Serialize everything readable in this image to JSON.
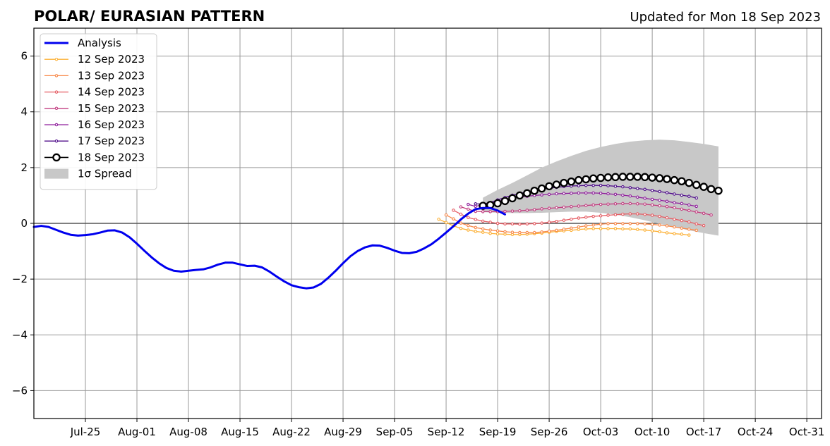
{
  "header": {
    "title": "POLAR/ EURASIAN  PATTERN",
    "updated": "Updated for Mon 18 Sep 2023"
  },
  "chart_data": {
    "type": "line",
    "title": "POLAR/ EURASIAN  PATTERN",
    "xlabel": "",
    "ylabel": "",
    "x_start_date": "2023-07-18",
    "xlim": [
      0,
      107
    ],
    "ylim": [
      -7,
      7
    ],
    "yticks": [
      -6,
      -4,
      -2,
      0,
      2,
      4,
      6
    ],
    "ytick_labels": [
      "−6",
      "−4",
      "−2",
      "0",
      "2",
      "4",
      "6"
    ],
    "xticks": [
      7,
      14,
      21,
      28,
      35,
      42,
      49,
      56,
      63,
      70,
      77,
      84,
      91,
      98,
      105
    ],
    "xtick_labels": [
      "Jul-25",
      "Aug-01",
      "Aug-08",
      "Aug-15",
      "Aug-22",
      "Aug-29",
      "Sep-05",
      "Sep-12",
      "Sep-19",
      "Sep-26",
      "Oct-03",
      "Oct-10",
      "Oct-17",
      "Oct-24",
      "Oct-31"
    ],
    "grid": true,
    "legend_position": "upper-left",
    "legend_labels": {
      "analysis": "Analysis",
      "spread": "1σ Spread"
    },
    "colors": {
      "analysis": "#0000ee",
      "spread": "#c8c8c8",
      "zero_line": "#555555",
      "grid": "#9a9a9a"
    },
    "analysis": {
      "name": "Analysis",
      "color": "#0000ee",
      "x_start": 0,
      "values": [
        -0.13,
        -0.09,
        -0.13,
        -0.23,
        -0.33,
        -0.41,
        -0.44,
        -0.42,
        -0.39,
        -0.33,
        -0.26,
        -0.25,
        -0.33,
        -0.5,
        -0.73,
        -0.98,
        -1.22,
        -1.43,
        -1.6,
        -1.7,
        -1.73,
        -1.7,
        -1.67,
        -1.65,
        -1.58,
        -1.48,
        -1.41,
        -1.41,
        -1.47,
        -1.53,
        -1.52,
        -1.58,
        -1.73,
        -1.91,
        -2.08,
        -2.22,
        -2.29,
        -2.33,
        -2.3,
        -2.17,
        -1.95,
        -1.7,
        -1.43,
        -1.18,
        -0.99,
        -0.86,
        -0.79,
        -0.8,
        -0.88,
        -0.98,
        -1.06,
        -1.07,
        -1.02,
        -0.9,
        -0.75,
        -0.55,
        -0.33,
        -0.1,
        0.14,
        0.35,
        0.51,
        0.55,
        0.55,
        0.46,
        0.32
      ]
    },
    "spread": {
      "x_start": 61,
      "upper": [
        0.92,
        1.2,
        1.45,
        1.72,
        2.0,
        2.22,
        2.42,
        2.6,
        2.74,
        2.85,
        2.93,
        2.98,
        3.0,
        2.98,
        2.92,
        2.85,
        2.76
      ],
      "lower": [
        0.4,
        0.38,
        0.37,
        0.37,
        0.38,
        0.4,
        0.42,
        0.42,
        0.38,
        0.31,
        0.22,
        0.11,
        -0.02,
        -0.13,
        -0.25,
        -0.35,
        -0.44
      ]
    },
    "series": [
      {
        "name": "12 Sep 2023",
        "color": "#fcb035",
        "x_start": 55,
        "values": [
          0.15,
          0.03,
          -0.09,
          -0.18,
          -0.24,
          -0.29,
          -0.32,
          -0.36,
          -0.38,
          -0.39,
          -0.4,
          -0.4,
          -0.39,
          -0.37,
          -0.35,
          -0.32,
          -0.29,
          -0.27,
          -0.25,
          -0.22,
          -0.2,
          -0.19,
          -0.19,
          -0.19,
          -0.19,
          -0.2,
          -0.2,
          -0.22,
          -0.24,
          -0.27,
          -0.3,
          -0.34,
          -0.37,
          -0.39,
          -0.42
        ]
      },
      {
        "name": "13 Sep 2023",
        "color": "#f8894a",
        "x_start": 56,
        "values": [
          0.3,
          0.16,
          0.01,
          -0.08,
          -0.15,
          -0.2,
          -0.24,
          -0.27,
          -0.3,
          -0.32,
          -0.33,
          -0.33,
          -0.33,
          -0.31,
          -0.28,
          -0.25,
          -0.21,
          -0.17,
          -0.13,
          -0.09,
          -0.06,
          -0.03,
          -0.01,
          -0.01,
          -0.01,
          -0.01,
          -0.01,
          -0.02,
          -0.04,
          -0.06,
          -0.09,
          -0.13,
          -0.17,
          -0.21,
          -0.25
        ]
      },
      {
        "name": "14 Sep 2023",
        "color": "#e55c63",
        "x_start": 57,
        "values": [
          0.47,
          0.33,
          0.21,
          0.14,
          0.08,
          0.04,
          0.0,
          -0.02,
          -0.02,
          -0.03,
          -0.02,
          -0.01,
          0.01,
          0.04,
          0.07,
          0.11,
          0.15,
          0.19,
          0.22,
          0.25,
          0.27,
          0.29,
          0.31,
          0.33,
          0.34,
          0.34,
          0.32,
          0.29,
          0.25,
          0.2,
          0.15,
          0.1,
          0.05,
          -0.02,
          -0.08
        ]
      },
      {
        "name": "15 Sep 2023",
        "color": "#c23d80",
        "x_start": 58,
        "values": [
          0.59,
          0.51,
          0.43,
          0.42,
          0.42,
          0.42,
          0.43,
          0.44,
          0.45,
          0.47,
          0.49,
          0.52,
          0.54,
          0.56,
          0.58,
          0.6,
          0.62,
          0.64,
          0.66,
          0.68,
          0.69,
          0.7,
          0.71,
          0.71,
          0.7,
          0.69,
          0.66,
          0.63,
          0.6,
          0.56,
          0.51,
          0.46,
          0.41,
          0.36,
          0.3
        ]
      },
      {
        "name": "16 Sep 2023",
        "color": "#8f1f9c",
        "x_start": 59,
        "values": [
          0.68,
          0.61,
          0.67,
          0.72,
          0.78,
          0.85,
          0.9,
          0.94,
          0.97,
          1.0,
          1.02,
          1.04,
          1.06,
          1.07,
          1.08,
          1.09,
          1.09,
          1.09,
          1.08,
          1.06,
          1.04,
          1.01,
          0.98,
          0.94,
          0.9,
          0.86,
          0.83,
          0.79,
          0.74,
          0.71,
          0.66,
          0.61
        ]
      },
      {
        "name": "17 Sep 2023",
        "color": "#4f0d8a",
        "x_start": 60,
        "values": [
          0.7,
          0.69,
          0.75,
          0.84,
          0.93,
          1.01,
          1.07,
          1.13,
          1.18,
          1.22,
          1.26,
          1.29,
          1.32,
          1.34,
          1.35,
          1.36,
          1.36,
          1.36,
          1.35,
          1.33,
          1.31,
          1.28,
          1.25,
          1.22,
          1.18,
          1.14,
          1.1,
          1.05,
          1.01,
          0.97,
          0.91
        ]
      },
      {
        "name": "18 Sep 2023",
        "color": "#000000",
        "x_start": 61,
        "big_markers": true,
        "values": [
          0.63,
          0.66,
          0.72,
          0.8,
          0.9,
          1.0,
          1.08,
          1.17,
          1.25,
          1.33,
          1.39,
          1.45,
          1.5,
          1.55,
          1.58,
          1.61,
          1.63,
          1.65,
          1.66,
          1.67,
          1.67,
          1.67,
          1.66,
          1.64,
          1.62,
          1.59,
          1.55,
          1.51,
          1.45,
          1.38,
          1.31,
          1.23,
          1.17
        ]
      }
    ]
  }
}
